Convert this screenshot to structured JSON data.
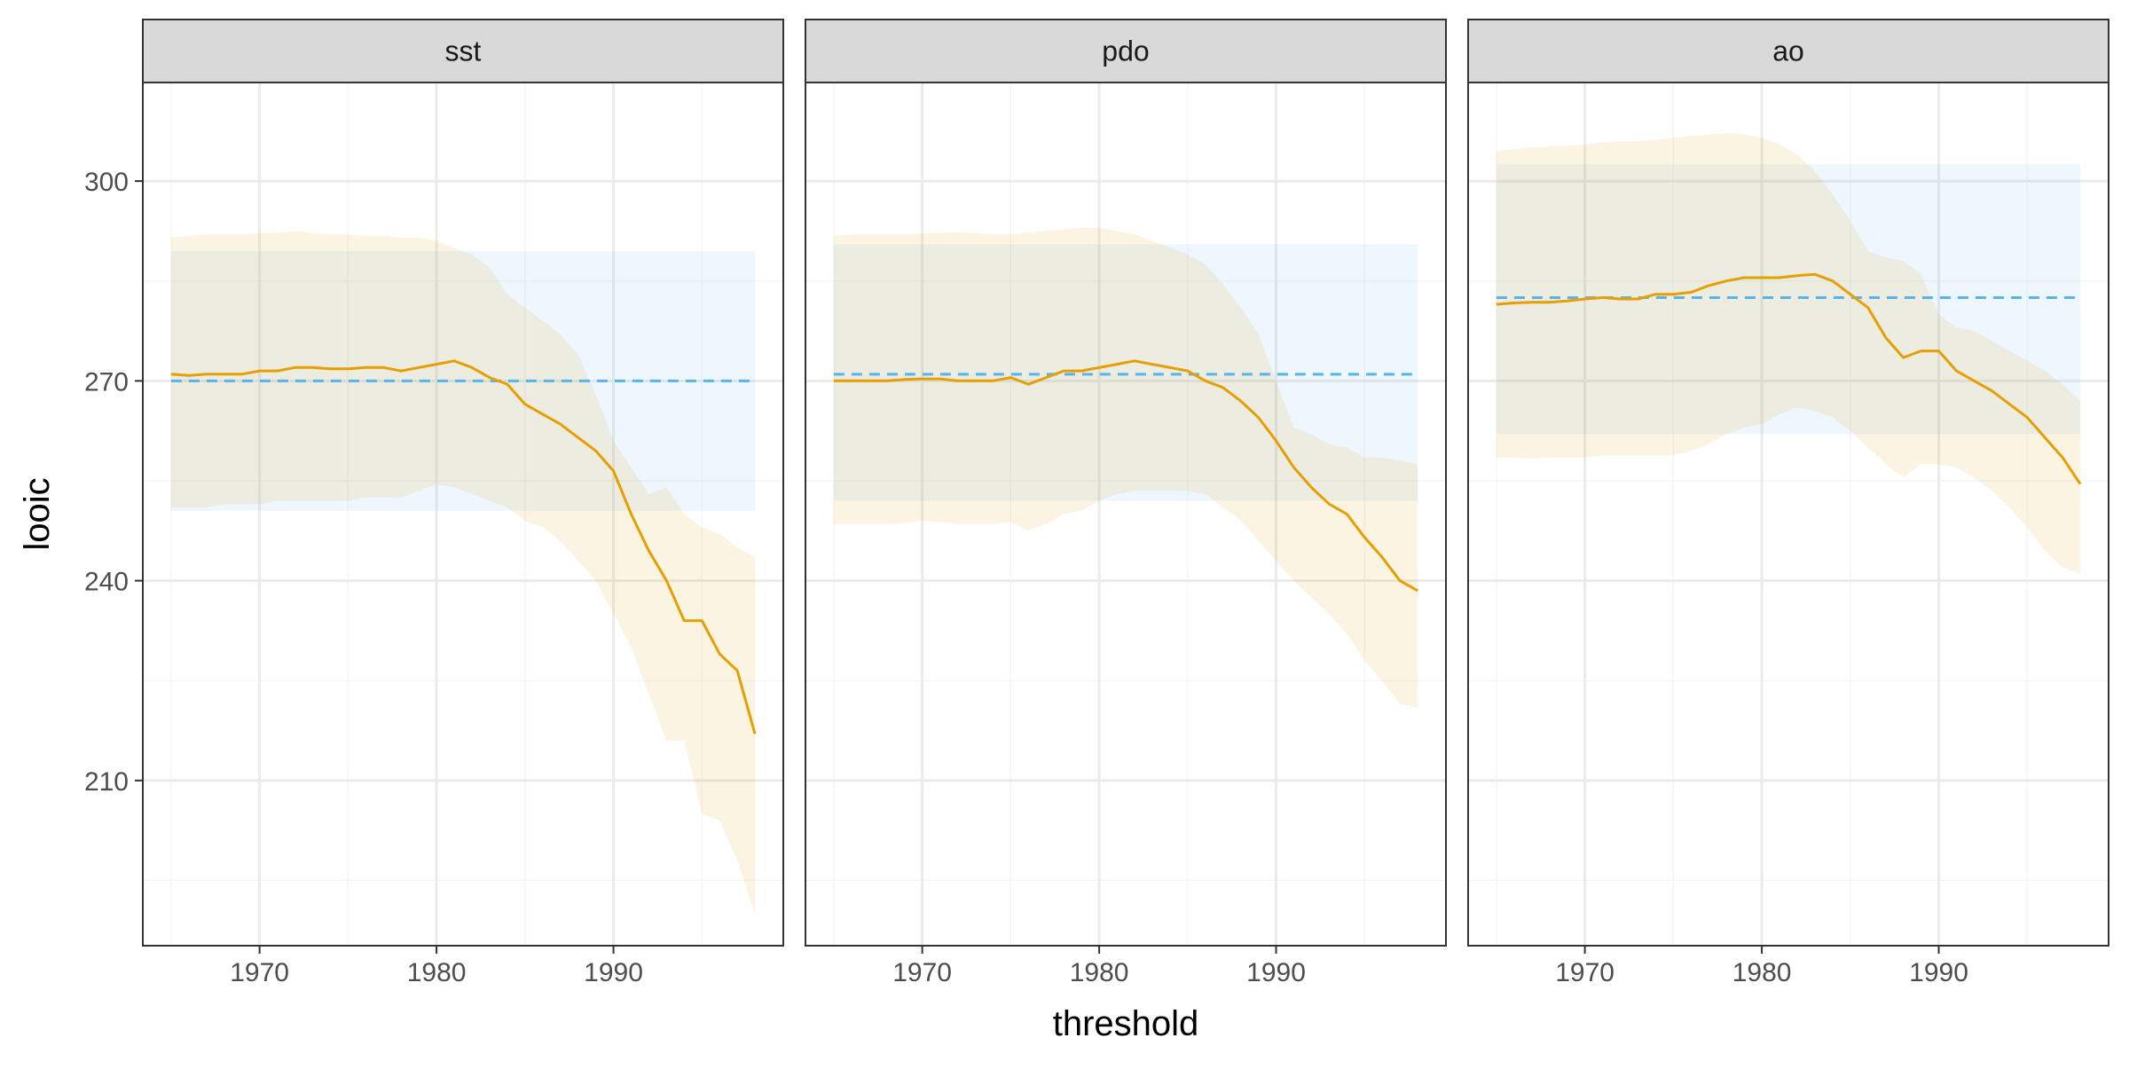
{
  "chart_data": {
    "type": "line",
    "xlabel": "threshold",
    "ylabel": "looic",
    "xlim": [
      1963.4,
      1999.6
    ],
    "ylim": [
      185.2,
      314.8
    ],
    "x_ticks": [
      1970,
      1980,
      1990
    ],
    "y_ticks": [
      210,
      240,
      270,
      300
    ],
    "grid": true,
    "colors": {
      "line": "#E69F00",
      "ribbon": "#E69F00",
      "baseline": "#56B4E9",
      "baseline_band": "#56B4E9",
      "strip_bg": "#D9D9D9",
      "panel_border": "#333333",
      "grid_major": "#EBEBEB",
      "grid_minor": "#F5F5F5"
    },
    "facets": [
      {
        "label": "sst",
        "baseline": 270,
        "baseline_band": [
          250.5,
          289.5
        ],
        "x": [
          1965,
          1966,
          1967,
          1968,
          1969,
          1970,
          1971,
          1972,
          1973,
          1974,
          1975,
          1976,
          1977,
          1978,
          1979,
          1980,
          1981,
          1982,
          1983,
          1984,
          1985,
          1986,
          1987,
          1988,
          1989,
          1990,
          1991,
          1992,
          1993,
          1994,
          1995,
          1996,
          1997,
          1998
        ],
        "y": [
          271,
          270.8,
          271,
          271,
          271,
          271.5,
          271.5,
          272,
          272,
          271.8,
          271.8,
          272,
          272,
          271.5,
          272,
          272.5,
          273,
          272,
          270.5,
          269.5,
          266.5,
          265,
          263.5,
          261.5,
          259.5,
          256.5,
          250,
          244.5,
          240,
          234,
          234,
          229,
          226.5,
          217
        ],
        "lower": [
          251,
          251,
          251,
          251.5,
          251.5,
          251.5,
          252,
          252,
          252,
          252,
          252,
          252.5,
          252.5,
          252.5,
          253.5,
          254.5,
          254,
          253,
          252,
          251,
          249,
          248,
          246,
          243,
          240,
          235,
          230,
          223,
          216,
          216,
          205,
          204,
          198,
          190
        ],
        "upper": [
          291.5,
          291.8,
          292,
          292,
          292,
          292.2,
          292.2,
          292.5,
          292.2,
          292,
          292,
          291.8,
          291.8,
          291.5,
          291.5,
          291,
          290,
          289,
          287,
          283,
          281,
          279,
          277,
          274,
          268,
          261,
          257,
          253,
          254,
          250,
          248,
          247,
          245,
          243.5
        ]
      },
      {
        "label": "pdo",
        "baseline": 271,
        "baseline_band": [
          252,
          290.5
        ],
        "x": [
          1965,
          1966,
          1967,
          1968,
          1969,
          1970,
          1971,
          1972,
          1973,
          1974,
          1975,
          1976,
          1977,
          1978,
          1979,
          1980,
          1981,
          1982,
          1983,
          1984,
          1985,
          1986,
          1987,
          1988,
          1989,
          1990,
          1991,
          1992,
          1993,
          1994,
          1995,
          1996,
          1997,
          1998
        ],
        "y": [
          270,
          270,
          270,
          270,
          270.2,
          270.3,
          270.3,
          270,
          270,
          270,
          270.5,
          269.5,
          270.5,
          271.5,
          271.5,
          272,
          272.5,
          273,
          272.5,
          272,
          271.5,
          270,
          269,
          267,
          264.5,
          261,
          257,
          254,
          251.5,
          250,
          246.5,
          243.5,
          240,
          238.5
        ],
        "lower": [
          248.5,
          248.5,
          248.5,
          248.5,
          248.7,
          249,
          248.8,
          248.5,
          248.5,
          248.5,
          248.8,
          247.5,
          248.5,
          250,
          250.5,
          252,
          253,
          253.5,
          253.5,
          253.5,
          253.5,
          253,
          251,
          249,
          246,
          243,
          240,
          237.5,
          235,
          232,
          228,
          225,
          221.5,
          221
        ],
        "upper": [
          291.8,
          292,
          292,
          292,
          292,
          292.2,
          292.2,
          292.3,
          292.2,
          292,
          292,
          292.3,
          292.5,
          292.8,
          293,
          293,
          292.5,
          292,
          291,
          290,
          289,
          287.5,
          284.5,
          281,
          277,
          270,
          263,
          262,
          260.5,
          260,
          258.5,
          258.5,
          258,
          257.5
        ]
      },
      {
        "label": "ao",
        "baseline": 282.5,
        "baseline_band": [
          262,
          302.5
        ],
        "x": [
          1965,
          1966,
          1967,
          1968,
          1969,
          1970,
          1971,
          1972,
          1973,
          1974,
          1975,
          1976,
          1977,
          1978,
          1979,
          1980,
          1981,
          1982,
          1983,
          1984,
          1985,
          1986,
          1987,
          1988,
          1989,
          1990,
          1991,
          1992,
          1993,
          1994,
          1995,
          1996,
          1997,
          1998
        ],
        "y": [
          281.5,
          281.7,
          281.8,
          281.8,
          282,
          282.3,
          282.5,
          282.3,
          282.3,
          283,
          283,
          283.3,
          284.3,
          285,
          285.5,
          285.5,
          285.5,
          285.8,
          286,
          285,
          283,
          281,
          276.5,
          273.5,
          274.5,
          274.5,
          271.5,
          270,
          268.5,
          266.5,
          264.5,
          261.5,
          258.5,
          254.5
        ],
        "lower": [
          258.5,
          258.5,
          258.3,
          258.5,
          258.5,
          258.5,
          258.8,
          258.8,
          258.8,
          258.8,
          258.8,
          259.5,
          260.5,
          262,
          263,
          263.5,
          265,
          266,
          265.5,
          264.5,
          262.5,
          260,
          257.5,
          255.5,
          257.5,
          257.5,
          257,
          255.5,
          253.5,
          251,
          248,
          244.5,
          242,
          241
        ],
        "upper": [
          304.5,
          304.8,
          305,
          305.2,
          305.3,
          305.5,
          305.8,
          306,
          306,
          306.2,
          306.5,
          306.8,
          307,
          307.2,
          307,
          306.5,
          305.5,
          304,
          301.5,
          298,
          294,
          289.5,
          288.5,
          288,
          286,
          280,
          278,
          277.5,
          276,
          274.5,
          273,
          271.5,
          269.5,
          267
        ]
      }
    ]
  }
}
